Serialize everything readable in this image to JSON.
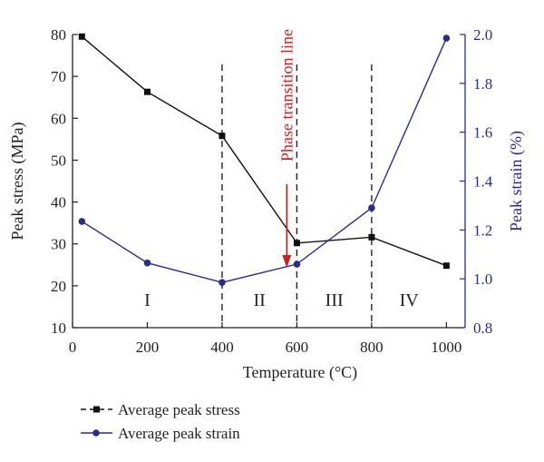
{
  "chart_data": {
    "type": "line",
    "x": [
      25,
      200,
      400,
      600,
      800,
      1000
    ],
    "xlabel": "Temperature (°C)",
    "xlim": [
      0,
      1050
    ],
    "xticks": [
      0,
      200,
      400,
      600,
      800,
      1000
    ],
    "ylabel_left": "Peak stress (MPa)",
    "ylim_left": [
      10,
      80
    ],
    "yticks_left": [
      10,
      20,
      30,
      40,
      50,
      60,
      70,
      80
    ],
    "ylabel_right": "Peak strain (%)",
    "ylim_right": [
      0.8,
      2.0
    ],
    "yticks_right": [
      "0.8",
      "1.0",
      "1.2",
      "1.4",
      "1.6",
      "1.8",
      "2.0"
    ],
    "series": [
      {
        "name": "Average peak stress",
        "axis": "left",
        "marker": "square",
        "color": "#111111",
        "values": [
          79.5,
          66.3,
          55.8,
          30.2,
          31.6,
          24.8
        ]
      },
      {
        "name": "Average peak strain",
        "axis": "right",
        "marker": "circle",
        "color": "#2b2b8c",
        "values": [
          1.235,
          1.065,
          0.985,
          1.06,
          1.29,
          1.985
        ]
      }
    ],
    "region_boundaries": [
      400,
      600,
      800
    ],
    "regions": [
      {
        "label": "I",
        "x": 200
      },
      {
        "label": "II",
        "x": 500
      },
      {
        "label": "III",
        "x": 700
      },
      {
        "label": "IV",
        "x": 900
      }
    ],
    "annotation": {
      "text": "Phase transition line",
      "x": 573,
      "color": "#cc1f1f"
    },
    "legend_position": "bottom-left",
    "grid": false
  }
}
